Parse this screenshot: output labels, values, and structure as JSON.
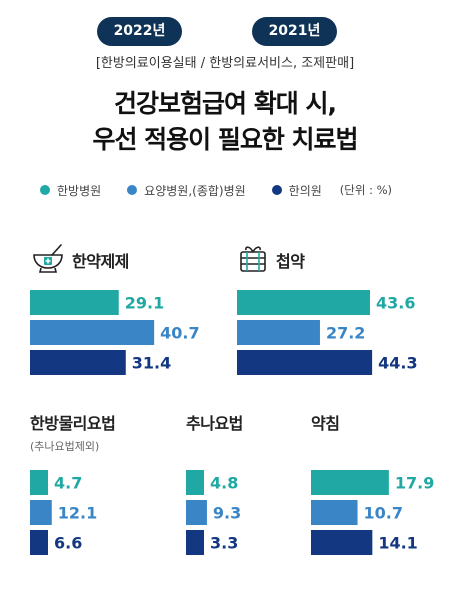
{
  "badges": [
    "2022년",
    "2021년"
  ],
  "subtitle": "[한방의료이용실태 / 한방의료서비스, 조제판매]",
  "title_lines": [
    "건강보험급여 확대 시,",
    "우선 적용이 필요한 치료법"
  ],
  "legend": {
    "items": [
      {
        "label": "한방병원",
        "color": "#1fa8a4"
      },
      {
        "label": "요양병원,(종합)병원",
        "color": "#3a85c6"
      },
      {
        "label": "한의원",
        "color": "#133781"
      }
    ],
    "unit": "(단위 : %)"
  },
  "chart_data": [
    {
      "type": "bar",
      "title": "한약제제",
      "categories": [
        "한방병원",
        "요양병원,(종합)병원",
        "한의원"
      ],
      "values": [
        29.1,
        40.7,
        31.4
      ],
      "icon": "herbal-mortar-icon"
    },
    {
      "type": "bar",
      "title": "첩약",
      "categories": [
        "한방병원",
        "요양병원,(종합)병원",
        "한의원"
      ],
      "values": [
        43.6,
        27.2,
        44.3
      ],
      "icon": "herbal-packet-icon"
    },
    {
      "type": "bar",
      "title": "한방물리요법",
      "note": "(추나요법제외)",
      "categories": [
        "한방병원",
        "요양병원,(종합)병원",
        "한의원"
      ],
      "values": [
        4.7,
        12.1,
        6.6
      ]
    },
    {
      "type": "bar",
      "title": "추나요법",
      "categories": [
        "한방병원",
        "요양병원,(종합)병원",
        "한의원"
      ],
      "values": [
        4.8,
        9.3,
        3.3
      ]
    },
    {
      "type": "bar",
      "title": "약침",
      "categories": [
        "한방병원",
        "요양병원,(종합)병원",
        "한의원"
      ],
      "values": [
        17.9,
        10.7,
        14.1
      ]
    }
  ],
  "colors": {
    "series": [
      "#1fa8a4",
      "#3a85c6",
      "#133781"
    ],
    "label": [
      "#1fa8a4",
      "#3a85c6",
      "#133781"
    ],
    "badge_bg": "#0f3356"
  }
}
